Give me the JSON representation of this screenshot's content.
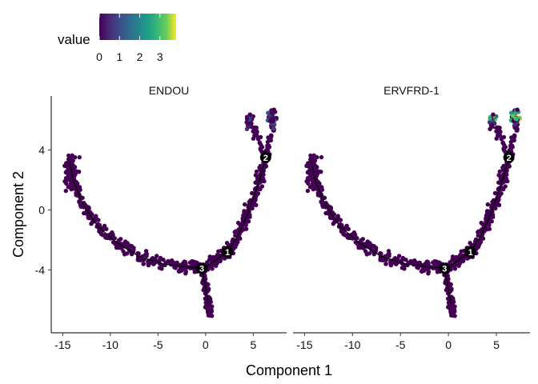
{
  "chart_data": {
    "type": "scatter",
    "xlabel": "Component 1",
    "ylabel": "Component 2",
    "xlim": [
      -16.2,
      8.5
    ],
    "ylim": [
      -8.2,
      7.6
    ],
    "xticks": [
      -15,
      -10,
      -5,
      0,
      5
    ],
    "xtick_labels": [
      "-15",
      "-10",
      "-5",
      "0",
      "5"
    ],
    "yticks": [
      -4,
      0,
      4
    ],
    "ytick_labels": [
      "-4",
      "0",
      "4"
    ],
    "grid": false,
    "legend": {
      "title": "value",
      "position": "top-left",
      "scale": "viridis",
      "range": [
        0,
        3.8
      ],
      "ticks": [
        0,
        1,
        2,
        3
      ],
      "tick_labels": [
        "0",
        "1",
        "2",
        "3"
      ]
    },
    "trajectory": [
      [
        -14.3,
        3.2
      ],
      [
        -13.8,
        1.8
      ],
      [
        -12.8,
        0.3
      ],
      [
        -11.3,
        -1.1
      ],
      [
        -9.3,
        -2.2
      ],
      [
        -7.0,
        -3.1
      ],
      [
        -4.5,
        -3.6
      ],
      [
        -2.0,
        -3.8
      ],
      [
        -0.2,
        -3.9
      ],
      [
        1.2,
        -3.3
      ],
      [
        2.3,
        -2.8
      ],
      [
        3.3,
        -1.8
      ],
      [
        4.2,
        -0.6
      ],
      [
        5.0,
        0.8
      ],
      [
        5.8,
        2.3
      ],
      [
        6.3,
        3.5
      ]
    ],
    "nodes": [
      {
        "label": "1",
        "x": 2.3,
        "y": -2.8
      },
      {
        "label": "2",
        "x": 6.3,
        "y": 3.5
      },
      {
        "label": "3",
        "x": -0.4,
        "y": -3.9
      }
    ],
    "panels": [
      {
        "title": "ENDOU",
        "hotspot_max": 1.5
      },
      {
        "title": "ERVFRD-1",
        "hotspot_max": 3.8
      }
    ]
  }
}
